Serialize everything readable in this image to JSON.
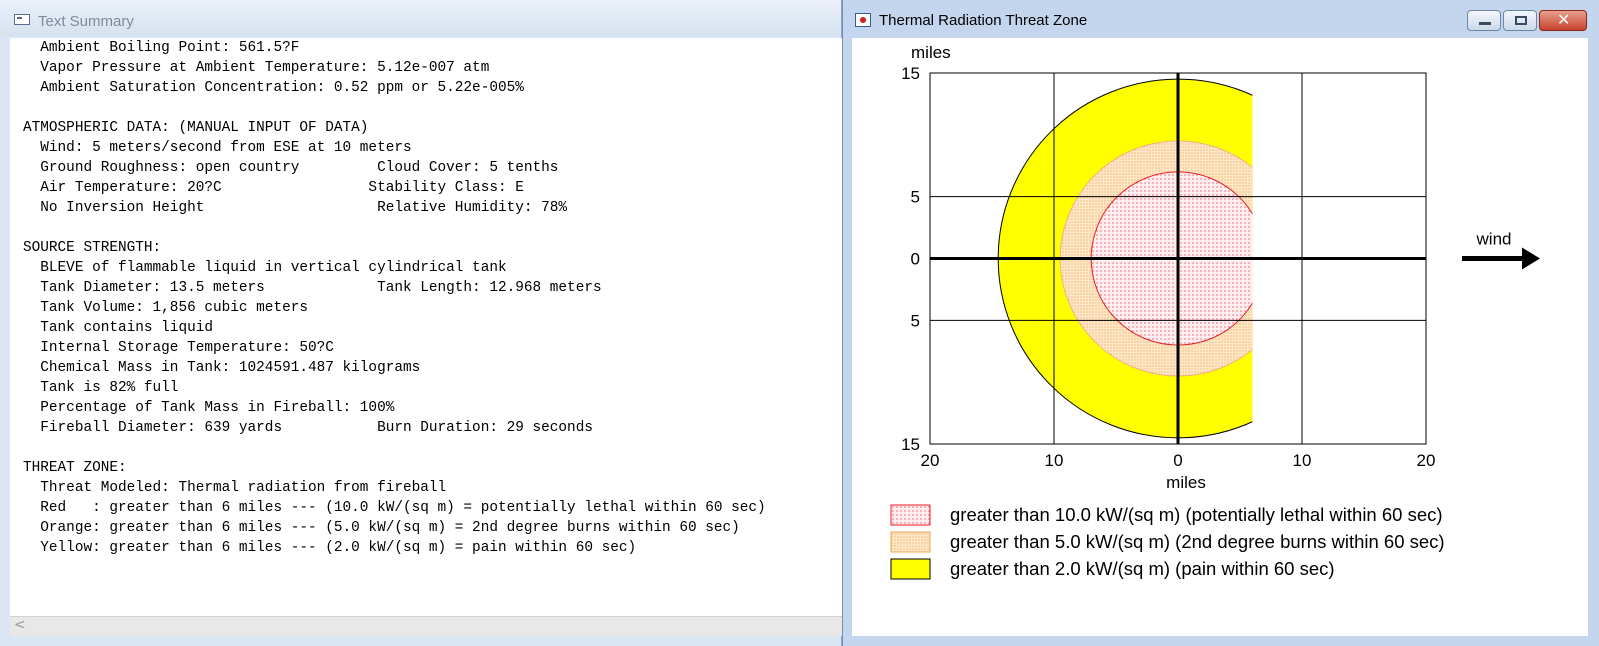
{
  "text_summary": {
    "title": "Text Summary",
    "lines": [
      "  Ambient Boiling Point: 561.5?F",
      "  Vapor Pressure at Ambient Temperature: 5.12e-007 atm",
      "  Ambient Saturation Concentration: 0.52 ppm or 5.22e-005%",
      "",
      "ATMOSPHERIC DATA: (MANUAL INPUT OF DATA)",
      "  Wind: 5 meters/second from ESE at 10 meters",
      "  Ground Roughness: open country         Cloud Cover: 5 tenths",
      "  Air Temperature: 20?C                 Stability Class: E",
      "  No Inversion Height                    Relative Humidity: 78%",
      "",
      "SOURCE STRENGTH:",
      "  BLEVE of flammable liquid in vertical cylindrical tank",
      "  Tank Diameter: 13.5 meters             Tank Length: 12.968 meters",
      "  Tank Volume: 1,856 cubic meters",
      "  Tank contains liquid",
      "  Internal Storage Temperature: 50?C",
      "  Chemical Mass in Tank: 1024591.487 kilograms",
      "  Tank is 82% full",
      "  Percentage of Tank Mass in Fireball: 100%",
      "  Fireball Diameter: 639 yards           Burn Duration: 29 seconds",
      "",
      "THREAT ZONE:",
      "  Threat Modeled: Thermal radiation from fireball",
      "  Red   : greater than 6 miles --- (10.0 kW/(sq m) = potentially lethal within 60 sec)",
      "  Orange: greater than 6 miles --- (5.0 kW/(sq m) = 2nd degree burns within 60 sec)",
      "  Yellow: greater than 6 miles --- (2.0 kW/(sq m) = pain within 60 sec)"
    ],
    "scroll_left_glyph": "<"
  },
  "threat_window": {
    "title": "Thermal Radiation Threat Zone",
    "close_glyph": "✕"
  },
  "chart_data": {
    "type": "threat-zone-map",
    "units": "miles",
    "xlabel": "miles",
    "ylabel": "miles",
    "xlim": [
      -20,
      20
    ],
    "ylim": [
      -15,
      15
    ],
    "x_tick_labels": [
      "20",
      "10",
      "0",
      "10",
      "20"
    ],
    "x_tick_values": [
      -20,
      -10,
      0,
      10,
      20
    ],
    "y_tick_labels": [
      "15",
      "5",
      "0",
      "5",
      "15"
    ],
    "y_tick_values": [
      15,
      5,
      0,
      -5,
      -15
    ],
    "wind_label": "wind",
    "zone_clip_x": 6,
    "zones": [
      {
        "name": "yellow",
        "radius": 14.5,
        "fill": "#ffff00",
        "border": "#000000",
        "legend": "greater than 2.0 kW/(sq m) (pain within 60 sec)"
      },
      {
        "name": "orange",
        "radius": 9.5,
        "fill": "#fde2b8",
        "border": "#f0b27a",
        "legend": "greater than 5.0 kW/(sq m) (2nd degree burns within 60 sec)"
      },
      {
        "name": "red",
        "radius": 7.0,
        "fill": "#ffeef0",
        "border": "#e8202a",
        "legend": "greater than 10.0 kW/(sq m) (potentially lethal within 60 sec)"
      }
    ],
    "legend_order": [
      "red",
      "orange",
      "yellow"
    ]
  }
}
